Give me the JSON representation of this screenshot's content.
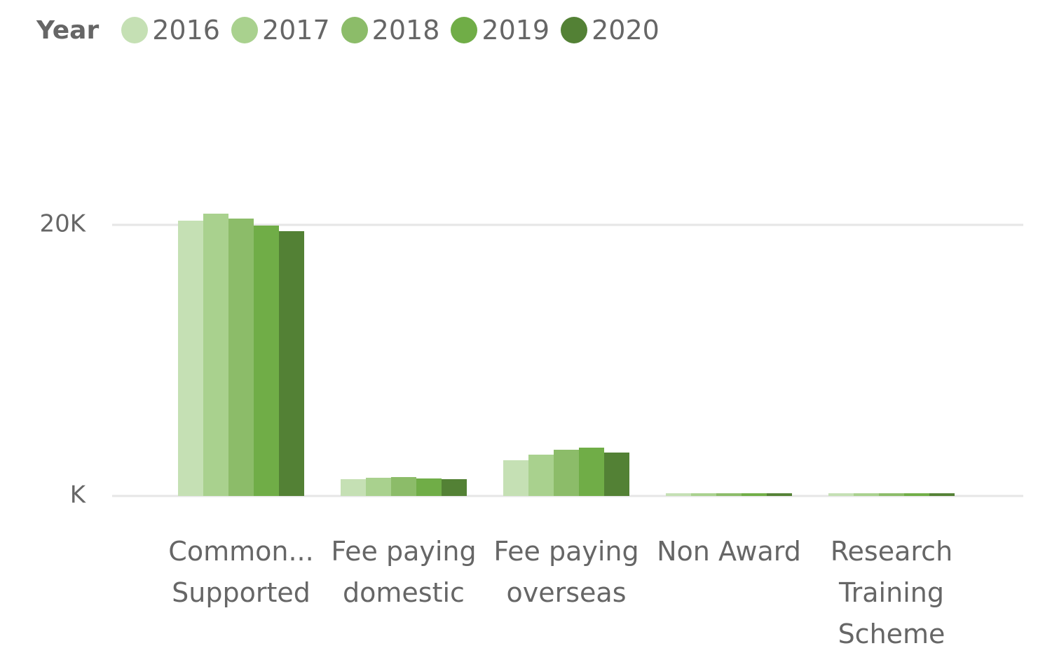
{
  "chart_data": {
    "type": "bar",
    "legend_title": "Year",
    "categories": [
      "Common... Supported",
      "Fee paying domestic",
      "Fee paying overseas",
      "Non Award",
      "Research Training Scheme"
    ],
    "series": [
      {
        "name": "2016",
        "color": "#c5e0b4",
        "values": [
          20310,
          1240,
          2636,
          200,
          200
        ]
      },
      {
        "name": "2017",
        "color": "#a9d18e",
        "values": [
          20827,
          1344,
          3049,
          200,
          200
        ]
      },
      {
        "name": "2018",
        "color": "#8cbc69",
        "values": [
          20465,
          1395,
          3411,
          200,
          200
        ]
      },
      {
        "name": "2019",
        "color": "#70ad47",
        "values": [
          19948,
          1292,
          3566,
          200,
          200
        ]
      },
      {
        "name": "2020",
        "color": "#538135",
        "values": [
          19535,
          1240,
          3204,
          200,
          200
        ]
      }
    ],
    "ylim": [
      0,
      30000
    ],
    "yticks": [
      {
        "value": 0,
        "label": "K"
      },
      {
        "value": 20000,
        "label": "20K"
      }
    ],
    "grid": true
  }
}
